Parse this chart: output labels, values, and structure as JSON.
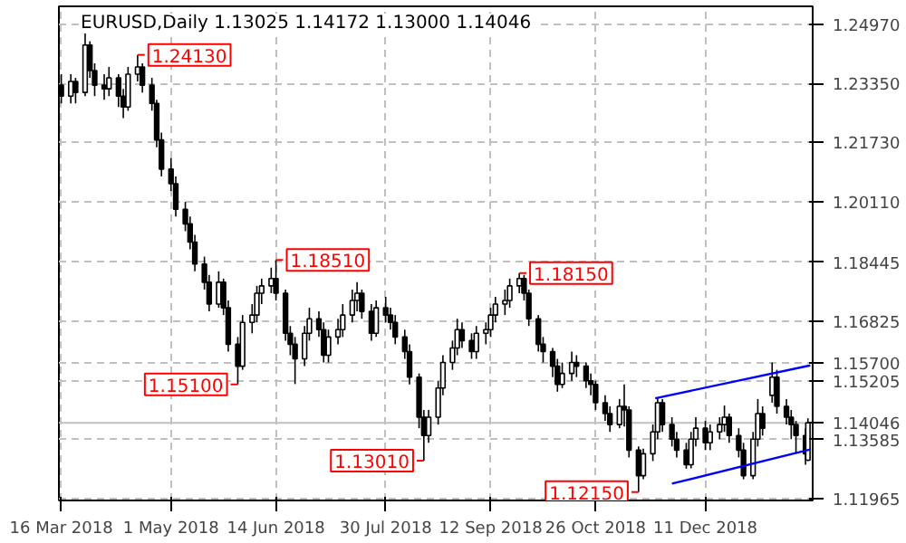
{
  "chart_data": {
    "type": "candlestick",
    "title": "EURUSD,Daily  1.13025 1.14172 1.13000 1.14046",
    "color": "#000000",
    "x": [
      "2018-03-16",
      "2018-03-20",
      "2018-03-22",
      "2018-03-26",
      "2018-03-28",
      "2018-03-30",
      "2018-04-03",
      "2018-04-05",
      "2018-04-09",
      "2018-04-11",
      "2018-04-13",
      "2018-04-17",
      "2018-04-19",
      "2018-04-23",
      "2018-04-25",
      "2018-04-27",
      "2018-05-01",
      "2018-05-03",
      "2018-05-07",
      "2018-05-09",
      "2018-05-11",
      "2018-05-15",
      "2018-05-17",
      "2018-05-21",
      "2018-05-23",
      "2018-05-25",
      "2018-05-29",
      "2018-05-31",
      "2018-06-04",
      "2018-06-06",
      "2018-06-08",
      "2018-06-12",
      "2018-06-14",
      "2018-06-18",
      "2018-06-20",
      "2018-06-22",
      "2018-06-26",
      "2018-06-28",
      "2018-07-02",
      "2018-07-04",
      "2018-07-06",
      "2018-07-10",
      "2018-07-12",
      "2018-07-16",
      "2018-07-18",
      "2018-07-20",
      "2018-07-24",
      "2018-07-26",
      "2018-07-30",
      "2018-08-01",
      "2018-08-03",
      "2018-08-07",
      "2018-08-09",
      "2018-08-13",
      "2018-08-15",
      "2018-08-17",
      "2018-08-21",
      "2018-08-23",
      "2018-08-27",
      "2018-08-29",
      "2018-08-31",
      "2018-09-04",
      "2018-09-06",
      "2018-09-10",
      "2018-09-12",
      "2018-09-14",
      "2018-09-18",
      "2018-09-20",
      "2018-09-24",
      "2018-09-26",
      "2018-09-28",
      "2018-10-02",
      "2018-10-04",
      "2018-10-08",
      "2018-10-10",
      "2018-10-12",
      "2018-10-16",
      "2018-10-18",
      "2018-10-22",
      "2018-10-24",
      "2018-10-26",
      "2018-10-30",
      "2018-11-01",
      "2018-11-05",
      "2018-11-07",
      "2018-11-09",
      "2018-11-13",
      "2018-11-15",
      "2018-11-19",
      "2018-11-21",
      "2018-11-23",
      "2018-11-27",
      "2018-11-29",
      "2018-12-03",
      "2018-12-05",
      "2018-12-07",
      "2018-12-11",
      "2018-12-13",
      "2018-12-17",
      "2018-12-19",
      "2018-12-21",
      "2018-12-25",
      "2018-12-27",
      "2018-12-31",
      "2019-01-02",
      "2019-01-04",
      "2019-01-08",
      "2019-01-10",
      "2019-01-14",
      "2019-01-16",
      "2019-01-18",
      "2019-01-22",
      "2019-01-23"
    ],
    "series": [
      {
        "type": "line",
        "color": "#0000ff",
        "x": [
          "2018-11-20",
          "2019-01-24"
        ],
        "values": [
          1.1472,
          1.1562
        ]
      },
      {
        "type": "line",
        "color": "#0000ff",
        "x": [
          "2018-11-27",
          "2019-01-24"
        ],
        "values": [
          1.1238,
          1.1332
        ]
      }
    ],
    "xlim": [
      "2018-03-15",
      "2019-01-25"
    ],
    "xticks": [
      {
        "value": "2018-03-16",
        "label": "16 Mar 2018"
      },
      {
        "value": "2018-05-01",
        "label": "1 May 2018"
      },
      {
        "value": "2018-06-14",
        "label": "14 Jun 2018"
      },
      {
        "value": "2018-07-30",
        "label": "30 Jul 2018"
      },
      {
        "value": "2018-09-12",
        "label": "12 Sep 2018"
      },
      {
        "value": "2018-10-26",
        "label": "26 Oct 2018"
      },
      {
        "value": "2018-12-11",
        "label": "11 Dec 2018"
      }
    ],
    "annotations": [
      {
        "text": "1.24130",
        "x": "2018-04-17",
        "y": 1.2413
      },
      {
        "text": "1.18510",
        "x": "2018-06-14",
        "y": 1.1851
      },
      {
        "text": "1.15100",
        "x": "2018-05-29",
        "y": 1.151
      },
      {
        "text": "1.13010",
        "x": "2018-08-15",
        "y": 1.1301
      },
      {
        "text": "1.18150",
        "x": "2018-09-24",
        "y": 1.1815
      },
      {
        "text": "1.12150",
        "x": "2018-11-13",
        "y": 1.1215
      }
    ],
    "ylim": [
      1.1192,
      1.2546
    ],
    "yticks": [
      {
        "value": 1.2497,
        "label": "1.24970"
      },
      {
        "value": 1.2335,
        "label": "1.23350"
      },
      {
        "value": 1.2173,
        "label": "1.21730"
      },
      {
        "value": 1.2011,
        "label": "1.20110"
      },
      {
        "value": 1.18445,
        "label": "1.18445"
      },
      {
        "value": 1.16825,
        "label": "1.16825"
      },
      {
        "value": 1.157,
        "label": "1.15700"
      },
      {
        "value": 1.15205,
        "label": "1.15205"
      },
      {
        "value": 1.13585,
        "label": "1.13585"
      },
      {
        "value": 1.11965,
        "label": "1.11965"
      }
    ],
    "grid": true,
    "ref_lines": [
      {
        "axis": "y",
        "value": 1.14046,
        "label": "1.14046",
        "color": "#c0c0c0"
      }
    ],
    "ohlc": [
      [
        1.233,
        1.236,
        1.228,
        1.23
      ],
      [
        1.23,
        1.236,
        1.228,
        1.234
      ],
      [
        1.234,
        1.235,
        1.228,
        1.231
      ],
      [
        1.231,
        1.248,
        1.23,
        1.244
      ],
      [
        1.244,
        1.245,
        1.235,
        1.237
      ],
      [
        1.237,
        1.239,
        1.23,
        1.233
      ],
      [
        1.233,
        1.236,
        1.229,
        1.232
      ],
      [
        1.232,
        1.238,
        1.23,
        1.235
      ],
      [
        1.235,
        1.236,
        1.227,
        1.23
      ],
      [
        1.23,
        1.232,
        1.224,
        1.227
      ],
      [
        1.227,
        1.238,
        1.226,
        1.236
      ],
      [
        1.236,
        1.2413,
        1.234,
        1.238
      ],
      [
        1.238,
        1.239,
        1.231,
        1.233
      ],
      [
        1.233,
        1.235,
        1.226,
        1.228
      ],
      [
        1.228,
        1.229,
        1.216,
        1.218
      ],
      [
        1.218,
        1.22,
        1.208,
        1.21
      ],
      [
        1.21,
        1.213,
        1.204,
        1.206
      ],
      [
        1.206,
        1.208,
        1.197,
        1.199
      ],
      [
        1.199,
        1.201,
        1.193,
        1.195
      ],
      [
        1.195,
        1.197,
        1.188,
        1.19
      ],
      [
        1.19,
        1.192,
        1.182,
        1.184
      ],
      [
        1.184,
        1.186,
        1.177,
        1.179
      ],
      [
        1.179,
        1.181,
        1.171,
        1.173
      ],
      [
        1.173,
        1.182,
        1.172,
        1.179
      ],
      [
        1.179,
        1.18,
        1.17,
        1.172
      ],
      [
        1.172,
        1.174,
        1.16,
        1.162
      ],
      [
        1.162,
        1.164,
        1.151,
        1.156
      ],
      [
        1.156,
        1.17,
        1.155,
        1.168
      ],
      [
        1.168,
        1.173,
        1.165,
        1.17
      ],
      [
        1.17,
        1.178,
        1.168,
        1.176
      ],
      [
        1.176,
        1.18,
        1.173,
        1.178
      ],
      [
        1.178,
        1.183,
        1.176,
        1.18
      ],
      [
        1.18,
        1.1851,
        1.174,
        1.176
      ],
      [
        1.176,
        1.177,
        1.163,
        1.165
      ],
      [
        1.165,
        1.167,
        1.159,
        1.162
      ],
      [
        1.162,
        1.164,
        1.1511,
        1.158
      ],
      [
        1.158,
        1.167,
        1.156,
        1.165
      ],
      [
        1.165,
        1.172,
        1.163,
        1.169
      ],
      [
        1.169,
        1.171,
        1.164,
        1.166
      ],
      [
        1.166,
        1.168,
        1.157,
        1.159
      ],
      [
        1.159,
        1.166,
        1.157,
        1.164
      ],
      [
        1.164,
        1.169,
        1.162,
        1.166
      ],
      [
        1.166,
        1.173,
        1.164,
        1.17
      ],
      [
        1.17,
        1.177,
        1.168,
        1.174
      ],
      [
        1.174,
        1.179,
        1.171,
        1.176
      ],
      [
        1.176,
        1.177,
        1.169,
        1.171
      ],
      [
        1.171,
        1.173,
        1.163,
        1.165
      ],
      [
        1.165,
        1.174,
        1.164,
        1.172
      ],
      [
        1.172,
        1.175,
        1.168,
        1.17
      ],
      [
        1.17,
        1.172,
        1.166,
        1.168
      ],
      [
        1.168,
        1.17,
        1.162,
        1.164
      ],
      [
        1.164,
        1.166,
        1.158,
        1.16
      ],
      [
        1.16,
        1.162,
        1.151,
        1.153
      ],
      [
        1.153,
        1.154,
        1.139,
        1.142
      ],
      [
        1.142,
        1.144,
        1.1301,
        1.137
      ],
      [
        1.137,
        1.144,
        1.135,
        1.142
      ],
      [
        1.142,
        1.152,
        1.14,
        1.15
      ],
      [
        1.15,
        1.159,
        1.148,
        1.157
      ],
      [
        1.157,
        1.163,
        1.155,
        1.161
      ],
      [
        1.161,
        1.169,
        1.159,
        1.166
      ],
      [
        1.166,
        1.168,
        1.161,
        1.163
      ],
      [
        1.163,
        1.165,
        1.158,
        1.16
      ],
      [
        1.16,
        1.167,
        1.158,
        1.165
      ],
      [
        1.165,
        1.168,
        1.162,
        1.166
      ],
      [
        1.166,
        1.172,
        1.164,
        1.17
      ],
      [
        1.17,
        1.175,
        1.168,
        1.173
      ],
      [
        1.173,
        1.177,
        1.17,
        1.174
      ],
      [
        1.174,
        1.18,
        1.172,
        1.178
      ],
      [
        1.178,
        1.1815,
        1.176,
        1.18
      ],
      [
        1.18,
        1.181,
        1.174,
        1.176
      ],
      [
        1.176,
        1.177,
        1.167,
        1.169
      ],
      [
        1.169,
        1.17,
        1.16,
        1.162
      ],
      [
        1.162,
        1.164,
        1.157,
        1.16
      ],
      [
        1.16,
        1.161,
        1.153,
        1.156
      ],
      [
        1.156,
        1.158,
        1.149,
        1.151
      ],
      [
        1.151,
        1.157,
        1.15,
        1.154
      ],
      [
        1.154,
        1.16,
        1.152,
        1.157
      ],
      [
        1.157,
        1.159,
        1.153,
        1.156
      ],
      [
        1.156,
        1.157,
        1.15,
        1.152
      ],
      [
        1.152,
        1.154,
        1.148,
        1.151
      ],
      [
        1.151,
        1.152,
        1.144,
        1.146
      ],
      [
        1.146,
        1.148,
        1.141,
        1.143
      ],
      [
        1.143,
        1.145,
        1.138,
        1.14
      ],
      [
        1.14,
        1.147,
        1.139,
        1.145
      ],
      [
        1.145,
        1.151,
        1.1395,
        1.144
      ],
      [
        1.144,
        1.145,
        1.131,
        1.133
      ],
      [
        1.133,
        1.134,
        1.1215,
        1.126
      ],
      [
        1.126,
        1.1334,
        1.125,
        1.132
      ],
      [
        1.132,
        1.14,
        1.13,
        1.138
      ],
      [
        1.138,
        1.1472,
        1.136,
        1.146
      ],
      [
        1.146,
        1.147,
        1.138,
        1.14
      ],
      [
        1.14,
        1.142,
        1.134,
        1.136
      ],
      [
        1.136,
        1.138,
        1.131,
        1.133
      ],
      [
        1.133,
        1.135,
        1.1279,
        1.129
      ],
      [
        1.129,
        1.138,
        1.128,
        1.136
      ],
      [
        1.136,
        1.142,
        1.134,
        1.139
      ],
      [
        1.139,
        1.141,
        1.133,
        1.135
      ],
      [
        1.135,
        1.14,
        1.133,
        1.138
      ],
      [
        1.138,
        1.142,
        1.136,
        1.14
      ],
      [
        1.14,
        1.1452,
        1.138,
        1.142
      ],
      [
        1.142,
        1.143,
        1.135,
        1.137
      ],
      [
        1.137,
        1.139,
        1.131,
        1.133
      ],
      [
        1.133,
        1.135,
        1.125,
        1.126
      ],
      [
        1.126,
        1.138,
        1.125,
        1.136
      ],
      [
        1.136,
        1.147,
        1.134,
        1.143
      ],
      [
        1.143,
        1.145,
        1.137,
        1.139
      ],
      [
        1.148,
        1.157,
        1.146,
        1.153
      ],
      [
        1.153,
        1.155,
        1.143,
        1.145
      ],
      [
        1.145,
        1.147,
        1.14,
        1.142
      ],
      [
        1.142,
        1.144,
        1.136,
        1.14
      ],
      [
        1.14,
        1.141,
        1.132,
        1.137
      ],
      [
        1.137,
        1.139,
        1.129,
        1.132
      ],
      [
        1.13025,
        1.14172,
        1.13,
        1.14046
      ]
    ]
  }
}
